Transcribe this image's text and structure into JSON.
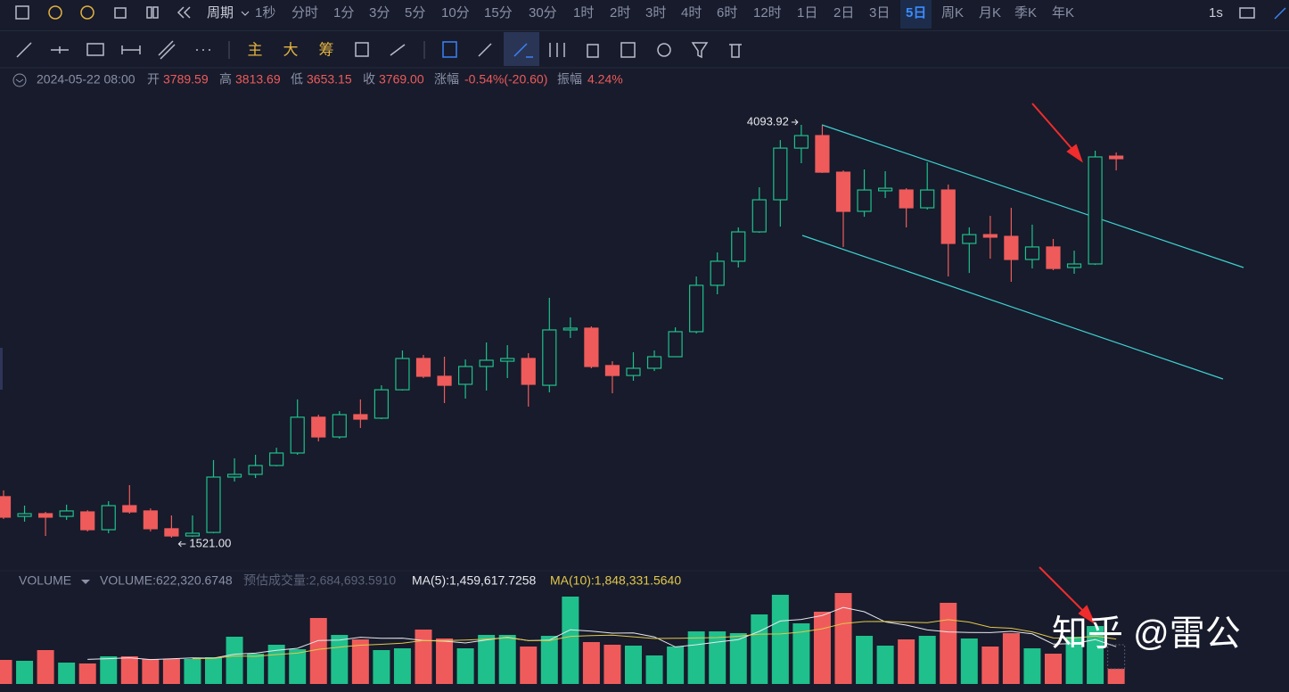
{
  "toolbar": {
    "period_label": "周期",
    "periods": [
      "1秒",
      "分时",
      "1分",
      "3分",
      "5分",
      "10分",
      "15分",
      "30分",
      "1时",
      "2时",
      "3时",
      "4时",
      "6时",
      "12时",
      "1日",
      "2日",
      "3日",
      "5日",
      "周K",
      "月K",
      "季K",
      "年K"
    ],
    "active_period": "5日",
    "speed": "1s"
  },
  "drawing_tools": {
    "indicators": [
      "主",
      "大",
      "筹"
    ]
  },
  "info": {
    "datetime": "2024-05-22 08:00",
    "open_label": "开",
    "open": "3789.59",
    "high_label": "高",
    "high": "3813.69",
    "low_label": "低",
    "low": "3653.15",
    "close_label": "收",
    "close": "3769.00",
    "change_label": "涨幅",
    "change": "-0.54%(-20.60)",
    "amplitude_label": "振幅",
    "amplitude": "4.24%"
  },
  "watermark": "知乎 @雷公",
  "chart_data": {
    "type": "candlestick",
    "up_color": "#1fc08c",
    "down_color": "#ef5b5b",
    "open": [
      1777,
      1654,
      1671,
      1654,
      1682,
      1571,
      1721,
      1688,
      1577,
      1532,
      1554,
      1899,
      1916,
      1971,
      2049,
      2272,
      2149,
      2288,
      2266,
      2443,
      2638,
      2527,
      2477,
      2588,
      2621,
      2638,
      2471,
      2816,
      2827,
      2594,
      2532,
      2577,
      2649,
      2805,
      3094,
      3244,
      3427,
      3627,
      3949,
      4027,
      3799,
      3555,
      3683,
      3688,
      3577,
      3688,
      3355,
      3410,
      3399,
      3255,
      3333,
      3205,
      3227,
      3899
    ],
    "high": [
      1816,
      1721,
      1682,
      1727,
      1693,
      1749,
      1849,
      1704,
      1660,
      1660,
      2005,
      2016,
      2038,
      2082,
      2383,
      2288,
      2310,
      2383,
      2471,
      2688,
      2660,
      2649,
      2632,
      2738,
      2721,
      2671,
      3016,
      2894,
      2838,
      2621,
      2677,
      2688,
      2832,
      3149,
      3299,
      3455,
      3705,
      3999,
      4093.92,
      4090,
      3810,
      3816,
      3805,
      3699,
      3860,
      3722,
      3455,
      3527,
      3577,
      3472,
      3383,
      3310,
      3933,
      3922
    ],
    "low": [
      1638,
      1621,
      1532,
      1632,
      1560,
      1549,
      1671,
      1560,
      1521,
      1527,
      1549,
      1871,
      1893,
      1966,
      2038,
      2121,
      2138,
      2205,
      2260,
      2438,
      2516,
      2360,
      2388,
      2438,
      2516,
      2338,
      2427,
      2766,
      2577,
      2421,
      2499,
      2560,
      2649,
      2794,
      3038,
      3205,
      3421,
      3460,
      3855,
      3794,
      3333,
      3521,
      3638,
      3455,
      3566,
      3149,
      3171,
      3260,
      3116,
      3199,
      3188,
      3166,
      3221,
      3810
    ],
    "close": [
      1649,
      1671,
      1649,
      1688,
      1571,
      1721,
      1682,
      1577,
      1532,
      1549,
      1899,
      1916,
      1971,
      2049,
      2272,
      2149,
      2288,
      2260,
      2443,
      2638,
      2527,
      2471,
      2588,
      2627,
      2638,
      2477,
      2816,
      2827,
      2588,
      2532,
      2577,
      2649,
      2805,
      3094,
      3244,
      3427,
      3627,
      3949,
      4027,
      3799,
      3555,
      3688,
      3699,
      3577,
      3688,
      3355,
      3410,
      3394,
      3255,
      3333,
      3199,
      3227,
      3894,
      3883
    ],
    "low_text": "1521.00",
    "volume": {
      "title": "VOLUME",
      "header": "VOLUME:622,320.6748",
      "estimated": "预估成交量:2,684,693.5910",
      "ma5": "MA(5):1,459,617.7258",
      "ma10": "MA(10):1,848,331.5640",
      "values": [
        988000,
        952000,
        1391000,
        878000,
        842000,
        1135000,
        1135000,
        1025000,
        1025000,
        1025000,
        1098000,
        1940000,
        1244000,
        1610000,
        1427000,
        2708000,
        2013000,
        1830000,
        1391000,
        1464000,
        2233000,
        1867000,
        1464000,
        2013000,
        2013000,
        1537000,
        1976000,
        3587000,
        1720000,
        1610000,
        1574000,
        1171000,
        1537000,
        2159000,
        2159000,
        2086000,
        2855000,
        3660000,
        2489000,
        2965000,
        3733000,
        1976000,
        1574000,
        1830000,
        1976000,
        3331000,
        1867000,
        1537000,
        2086000,
        1464000,
        1244000,
        1940000,
        2379000,
        622320.6748
      ]
    }
  }
}
